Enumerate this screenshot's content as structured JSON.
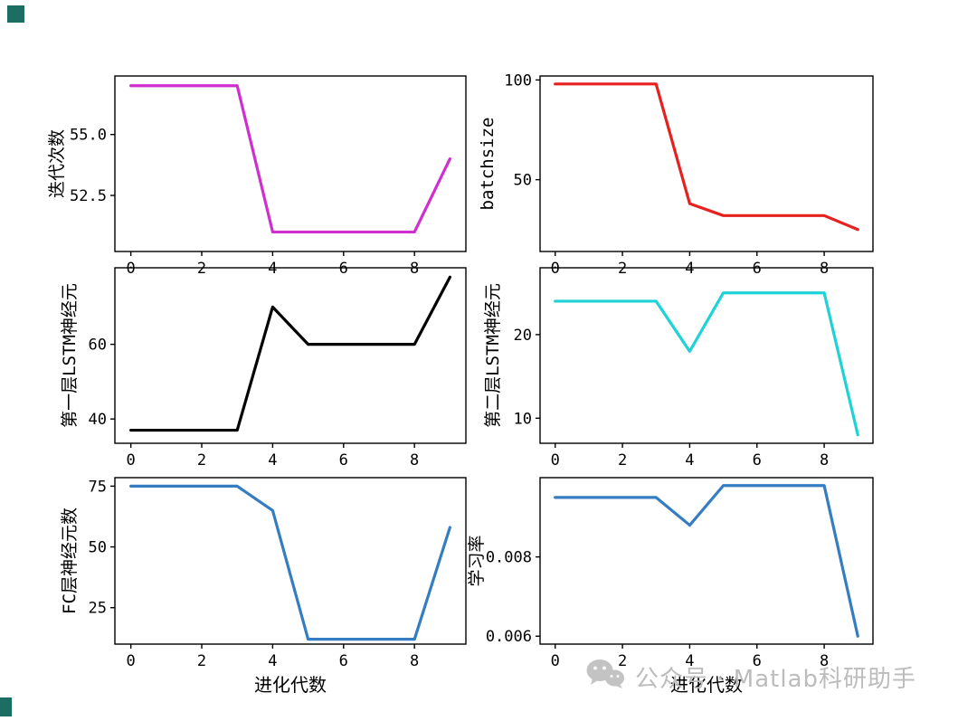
{
  "figure": {
    "background": "#ffffff"
  },
  "watermark": {
    "text": "公众号 · Matlab科研助手",
    "color": "#bcbcbc",
    "icon": "wechat-icon"
  },
  "decorations": {
    "corner_color": "#1d6e62"
  },
  "chart_data": [
    {
      "type": "line",
      "ylabel": "迭代次数",
      "xlabel": "",
      "color": "#d02fd0",
      "x": [
        0,
        1,
        2,
        3,
        4,
        5,
        6,
        7,
        8,
        9
      ],
      "y": [
        57,
        57,
        57,
        57,
        51,
        51,
        51,
        51,
        51,
        54
      ],
      "xlim": [
        -0.45,
        9.45
      ],
      "ylim": [
        50.2,
        57.4
      ],
      "xticks": [
        0,
        2,
        4,
        6,
        8
      ],
      "yticks": [
        55.0,
        52.5
      ],
      "ytick_labels": [
        "55.0",
        "52.5"
      ],
      "grid": false,
      "legend": null
    },
    {
      "type": "line",
      "ylabel": "batchsize",
      "xlabel": "",
      "color": "#e62120",
      "x": [
        0,
        1,
        2,
        3,
        4,
        5,
        6,
        7,
        8,
        9
      ],
      "y": [
        98,
        98,
        98,
        98,
        38,
        32,
        32,
        32,
        32,
        25
      ],
      "xlim": [
        -0.45,
        9.45
      ],
      "ylim": [
        14,
        102
      ],
      "xticks": [
        0,
        2,
        4,
        6,
        8
      ],
      "yticks": [
        100,
        50
      ],
      "ytick_labels": [
        "100",
        "50"
      ],
      "grid": false,
      "legend": null
    },
    {
      "type": "line",
      "ylabel": "第一层LSTM神经元",
      "xlabel": "",
      "color": "#000000",
      "x": [
        0,
        1,
        2,
        3,
        4,
        5,
        6,
        7,
        8,
        9
      ],
      "y": [
        37,
        37,
        37,
        37,
        70,
        60,
        60,
        60,
        60,
        78
      ],
      "xlim": [
        -0.45,
        9.45
      ],
      "ylim": [
        33.5,
        80.5
      ],
      "xticks": [
        0,
        2,
        4,
        6,
        8
      ],
      "yticks": [
        60,
        40
      ],
      "ytick_labels": [
        "60",
        "40"
      ],
      "grid": false,
      "legend": null
    },
    {
      "type": "line",
      "ylabel": "第二层LSTM神经元",
      "xlabel": "",
      "color": "#1fd2d8",
      "x": [
        0,
        1,
        2,
        3,
        4,
        5,
        6,
        7,
        8,
        9
      ],
      "y": [
        24,
        24,
        24,
        24,
        18,
        25,
        25,
        25,
        25,
        8
      ],
      "xlim": [
        -0.45,
        9.45
      ],
      "ylim": [
        7,
        28
      ],
      "xticks": [
        0,
        2,
        4,
        6,
        8
      ],
      "yticks": [
        20,
        10
      ],
      "ytick_labels": [
        "20",
        "10"
      ],
      "grid": false,
      "legend": null
    },
    {
      "type": "line",
      "ylabel": "FC层神经元数",
      "xlabel": "进化代数",
      "color": "#347dc1",
      "x": [
        0,
        1,
        2,
        3,
        4,
        5,
        6,
        7,
        8,
        9
      ],
      "y": [
        75,
        75,
        75,
        75,
        65,
        12,
        12,
        12,
        12,
        58
      ],
      "xlim": [
        -0.45,
        9.45
      ],
      "ylim": [
        10,
        78.5
      ],
      "xticks": [
        0,
        2,
        4,
        6,
        8
      ],
      "yticks": [
        75,
        50,
        25
      ],
      "ytick_labels": [
        "75",
        "50",
        "25"
      ],
      "grid": false,
      "legend": null
    },
    {
      "type": "line",
      "ylabel": "学习率",
      "xlabel": "进化代数",
      "color": "#347dc1",
      "x": [
        0,
        1,
        2,
        3,
        4,
        5,
        6,
        7,
        8,
        9
      ],
      "y": [
        0.0095,
        0.0095,
        0.0095,
        0.0095,
        0.0088,
        0.0098,
        0.0098,
        0.0098,
        0.0098,
        0.006
      ],
      "xlim": [
        -0.45,
        9.45
      ],
      "ylim": [
        0.0058,
        0.01
      ],
      "xticks": [
        0,
        2,
        4,
        6,
        8
      ],
      "yticks": [
        0.008,
        0.006
      ],
      "ytick_labels": [
        "0.008",
        "0.006"
      ],
      "grid": false,
      "legend": null
    }
  ]
}
